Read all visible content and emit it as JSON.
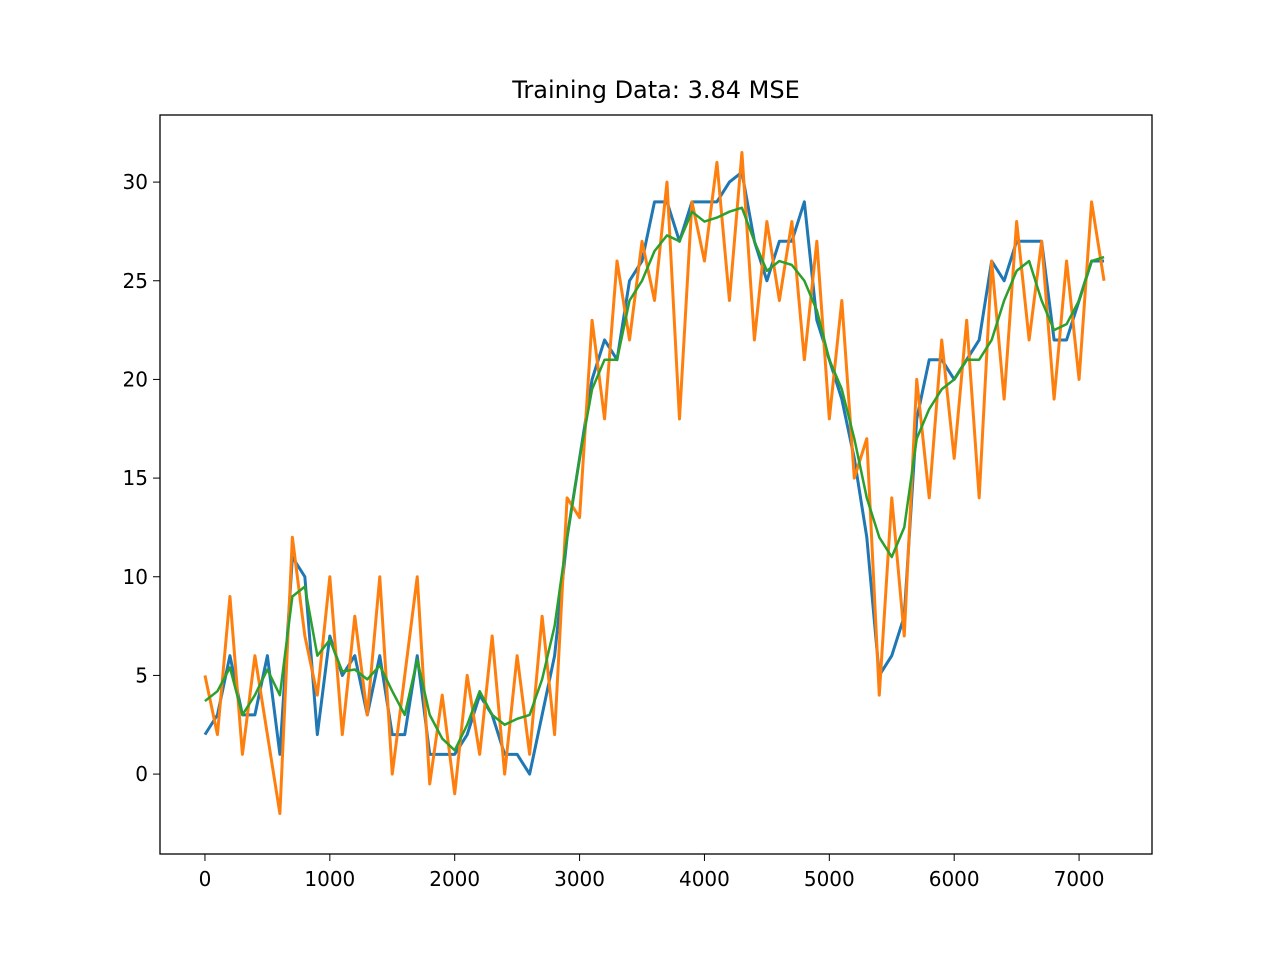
{
  "chart_data": {
    "type": "line",
    "title": "Training Data: 3.84 MSE",
    "x": [
      0,
      100,
      200,
      300,
      400,
      500,
      600,
      700,
      800,
      900,
      1000,
      1100,
      1200,
      1300,
      1400,
      1500,
      1600,
      1700,
      1800,
      1900,
      2000,
      2100,
      2200,
      2300,
      2400,
      2500,
      2600,
      2700,
      2800,
      2900,
      3000,
      3100,
      3200,
      3300,
      3400,
      3500,
      3600,
      3700,
      3800,
      3900,
      4000,
      4100,
      4200,
      4300,
      4400,
      4500,
      4600,
      4700,
      4800,
      4900,
      5000,
      5100,
      5200,
      5300,
      5400,
      5500,
      5600,
      5700,
      5800,
      5900,
      6000,
      6100,
      6200,
      6300,
      6400,
      6500,
      6600,
      6700,
      6800,
      6900,
      7000,
      7100,
      7200
    ],
    "series": [
      {
        "color": "#1f77b4",
        "values": [
          2,
          3,
          6,
          3,
          3,
          6,
          1,
          11,
          10,
          2,
          7,
          5,
          6,
          3,
          6,
          2,
          2,
          6,
          1,
          1,
          1,
          2,
          4,
          3,
          1,
          1,
          0,
          3,
          6,
          12,
          16,
          20,
          22,
          21,
          25,
          26,
          29,
          29,
          27,
          29,
          29,
          29,
          30,
          30.5,
          27,
          25,
          27,
          27,
          29,
          23,
          21,
          19,
          16,
          12,
          5,
          6,
          8,
          18,
          21,
          21,
          20,
          21,
          22,
          26,
          25,
          27,
          27,
          27,
          22,
          22,
          24,
          26,
          26
        ]
      },
      {
        "color": "#ff7f0e",
        "values": [
          5,
          2,
          9,
          1,
          6,
          2,
          -2,
          12,
          7,
          4,
          10,
          2,
          8,
          3,
          10,
          0,
          5,
          10,
          -0.5,
          4,
          -1,
          5,
          1,
          7,
          0,
          6,
          1,
          8,
          2,
          14,
          13,
          23,
          18,
          26,
          22,
          27,
          24,
          30,
          18,
          29,
          26,
          31,
          24,
          31.5,
          22,
          28,
          24,
          28,
          21,
          27,
          18,
          24,
          15,
          17,
          4,
          14,
          7,
          20,
          14,
          22,
          16,
          23,
          14,
          26,
          19,
          28,
          22,
          27,
          19,
          26,
          20,
          29,
          25
        ]
      },
      {
        "color": "#2ca02c",
        "values": [
          3.7,
          4.2,
          5.4,
          3.0,
          4.0,
          5.3,
          4.0,
          9.0,
          9.5,
          6.0,
          6.8,
          5.2,
          5.3,
          4.8,
          5.5,
          4.2,
          3.0,
          5.8,
          3.0,
          1.8,
          1.2,
          2.5,
          4.2,
          3.0,
          2.5,
          2.8,
          3.0,
          4.8,
          7.5,
          12,
          16,
          19.5,
          21,
          21,
          24,
          25,
          26.5,
          27.3,
          27,
          28.5,
          28,
          28.2,
          28.5,
          28.7,
          27,
          25.5,
          26,
          25.8,
          25,
          23.5,
          21,
          19.5,
          17,
          14,
          12,
          11,
          12.5,
          17,
          18.5,
          19.5,
          20,
          21,
          21,
          22,
          24,
          25.5,
          26,
          24,
          22.5,
          22.8,
          24,
          26,
          26.2
        ]
      }
    ],
    "xlim": [
      -360,
      7584
    ],
    "ylim": [
      -4.05,
      33.4
    ],
    "xticks": [
      0,
      1000,
      2000,
      3000,
      4000,
      5000,
      6000,
      7000
    ],
    "yticks": [
      0,
      5,
      10,
      15,
      20,
      25,
      30
    ]
  }
}
